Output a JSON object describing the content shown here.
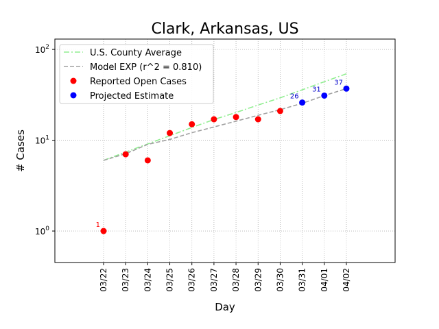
{
  "chart_data": {
    "type": "scatter",
    "title": "Clark, Arkansas, US",
    "xlabel": "Day",
    "ylabel": "# Cases",
    "yscale": "log",
    "ylim": [
      0.45,
      130
    ],
    "grid": true,
    "legend_position": "top-left",
    "categories": [
      "03/22",
      "03/23",
      "03/24",
      "03/25",
      "03/26",
      "03/27",
      "03/28",
      "03/29",
      "03/30",
      "03/31",
      "04/01",
      "04/02"
    ],
    "y_ticks": [
      {
        "value": 1,
        "label": "10^0",
        "base": "10",
        "exp": "0"
      },
      {
        "value": 10,
        "label": "10^1",
        "base": "10",
        "exp": "1"
      },
      {
        "value": 100,
        "label": "10^2",
        "base": "10",
        "exp": "2"
      }
    ],
    "series": [
      {
        "name": "U.S. County Average",
        "kind": "line",
        "style": "dashdot",
        "color": "#90ee90",
        "x": [
          "03/22",
          "03/23",
          "03/24",
          "03/25",
          "03/26",
          "03/27",
          "03/28",
          "03/29",
          "03/30",
          "03/31",
          "04/01",
          "04/02"
        ],
        "values": [
          6.0,
          7.4,
          9.1,
          11.2,
          13.8,
          16.9,
          20.2,
          24.4,
          29.3,
          35.9,
          44.1,
          53.9
        ]
      },
      {
        "name": "Model EXP (r^2 = 0.810)",
        "kind": "line",
        "style": "dashed",
        "color": "#a0a0a0",
        "x": [
          "03/22",
          "03/23",
          "03/24",
          "03/25",
          "03/26",
          "03/27",
          "03/28",
          "03/29",
          "03/30",
          "03/31",
          "04/01",
          "04/02"
        ],
        "values": [
          6.0,
          7.1,
          9.0,
          10.2,
          12.1,
          14.0,
          16.2,
          18.8,
          21.7,
          25.5,
          31.0,
          37.0
        ]
      },
      {
        "name": "Reported Open Cases",
        "kind": "marker",
        "color": "#ff0000",
        "x": [
          "03/22",
          "03/23",
          "03/24",
          "03/25",
          "03/26",
          "03/27",
          "03/28",
          "03/29",
          "03/30"
        ],
        "values": [
          1,
          7,
          6,
          12,
          15,
          17,
          18,
          17,
          21
        ]
      },
      {
        "name": "Projected Estimate",
        "kind": "marker",
        "color": "#0000ff",
        "x": [
          "03/31",
          "04/01",
          "04/02"
        ],
        "values": [
          26,
          31,
          37
        ]
      }
    ],
    "annotations": [
      {
        "x": "03/22",
        "y": 1,
        "text": "1",
        "color": "#ff0000"
      },
      {
        "x": "03/31",
        "y": 26,
        "text": "26",
        "color": "#0000cc"
      },
      {
        "x": "04/01",
        "y": 31,
        "text": "31",
        "color": "#0000cc"
      },
      {
        "x": "04/02",
        "y": 37,
        "text": "37",
        "color": "#0000cc"
      }
    ]
  }
}
